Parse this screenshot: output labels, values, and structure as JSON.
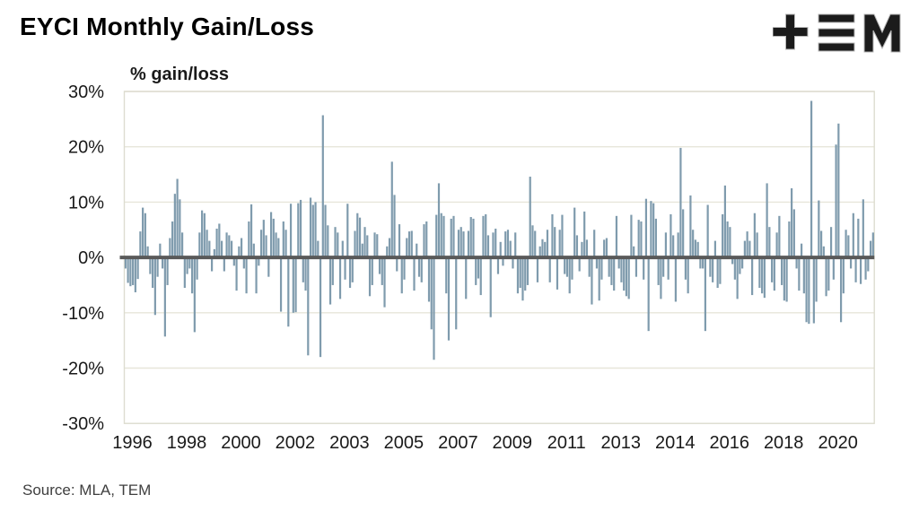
{
  "header": {
    "title": "EYCI Monthly Gain/Loss"
  },
  "logo": {
    "name": "tem-logo",
    "color": "#1b1b1b"
  },
  "source_note": "Source: MLA, TEM",
  "chart_data": {
    "type": "bar",
    "title": "% gain/loss",
    "ylabel": "% gain/loss",
    "xlabel": "",
    "ylim": [
      -30,
      30
    ],
    "grid": true,
    "legend_position": "none",
    "series_name": "EYCI monthly percent gain/loss",
    "x_start": "1996-07",
    "x_end": "2021-10",
    "x_frequency": "monthly",
    "n_points": 304,
    "y_tick_labels": [
      "30%",
      "20%",
      "10%",
      "0%",
      "-10%",
      "-20%",
      "-30%"
    ],
    "y_tick_values": [
      30,
      20,
      10,
      0,
      -10,
      -20,
      -30
    ],
    "x_ticks": [
      {
        "label": "1996",
        "month_index": 0
      },
      {
        "label": "1998",
        "month_index": 22
      },
      {
        "label": "2000",
        "month_index": 44
      },
      {
        "label": "2002",
        "month_index": 66
      },
      {
        "label": "2003",
        "month_index": 88
      },
      {
        "label": "2005",
        "month_index": 110
      },
      {
        "label": "2007",
        "month_index": 132
      },
      {
        "label": "2009",
        "month_index": 154
      },
      {
        "label": "2011",
        "month_index": 176
      },
      {
        "label": "2013",
        "month_index": 198
      },
      {
        "label": "2014",
        "month_index": 220
      },
      {
        "label": "2016",
        "month_index": 242
      },
      {
        "label": "2018",
        "month_index": 264
      },
      {
        "label": "2020",
        "month_index": 286
      }
    ],
    "values": [
      -2.0,
      -4.6,
      -5.2,
      -5.0,
      -6.3,
      -3.9,
      4.7,
      9.0,
      8.0,
      2.0,
      -3.0,
      -5.5,
      -10.4,
      -3.5,
      2.5,
      -2.0,
      -14.3,
      -5.0,
      3.5,
      6.5,
      11.5,
      14.2,
      10.5,
      4.5,
      -5.5,
      -3.0,
      -2.0,
      -6.5,
      -13.5,
      -4.0,
      4.5,
      8.5,
      8.0,
      5.0,
      3.0,
      -2.5,
      1.5,
      5.2,
      6.1,
      3.0,
      -2.5,
      4.5,
      4.0,
      3.0,
      -1.5,
      -6.0,
      2.0,
      3.5,
      -2.0,
      -6.5,
      6.5,
      9.6,
      2.5,
      -6.5,
      -1.5,
      5.0,
      6.8,
      4.0,
      -3.5,
      8.2,
      7.0,
      4.5,
      3.5,
      -9.8,
      6.5,
      5.0,
      -12.5,
      9.7,
      -10.0,
      -9.9,
      9.8,
      10.4,
      -4.5,
      -6.0,
      -17.7,
      10.8,
      9.5,
      10.0,
      3.0,
      -18.0,
      25.7,
      9.5,
      5.8,
      -8.5,
      -5.0,
      5.5,
      4.5,
      -7.5,
      3.0,
      -4.0,
      9.7,
      -5.5,
      -4.5,
      4.8,
      8.0,
      7.2,
      2.5,
      5.5,
      4.0,
      -7.0,
      -5.0,
      4.5,
      4.2,
      -3.0,
      -5.0,
      -9.0,
      2.0,
      3.5,
      17.3,
      11.3,
      -2.5,
      6.0,
      -6.5,
      -4.0,
      3.5,
      4.7,
      4.8,
      -6.0,
      2.5,
      -3.5,
      -4.5,
      6.0,
      6.5,
      -8.0,
      -13.0,
      -18.5,
      7.7,
      13.4,
      8.0,
      7.5,
      -6.5,
      -15.0,
      7.0,
      7.5,
      -13.0,
      5.0,
      5.5,
      4.7,
      -7.5,
      4.8,
      7.3,
      7.0,
      -5.0,
      -3.8,
      -6.8,
      7.5,
      7.8,
      4.0,
      -10.8,
      4.5,
      5.2,
      -3.0,
      2.8,
      -1.5,
      4.7,
      5.0,
      3.0,
      -2.0,
      4.5,
      -6.5,
      -5.5,
      -7.8,
      -6.0,
      -5.0,
      14.6,
      5.8,
      4.8,
      -4.5,
      2.0,
      3.3,
      2.8,
      5.0,
      -4.5,
      7.8,
      5.5,
      -5.8,
      5.0,
      7.7,
      -3.0,
      -3.5,
      -6.5,
      -4.0,
      9.0,
      4.0,
      -2.5,
      2.8,
      8.3,
      3.2,
      -3.5,
      -8.5,
      5.0,
      -2.0,
      -7.8,
      -4.0,
      3.2,
      3.5,
      -3.5,
      -5.0,
      -6.0,
      7.5,
      -2.0,
      -4.5,
      -6.0,
      -7.0,
      -7.5,
      7.7,
      2.0,
      -3.5,
      6.8,
      6.5,
      -4.0,
      10.6,
      -13.3,
      10.2,
      9.8,
      7.0,
      -5.0,
      -7.5,
      -3.5,
      4.5,
      -4.0,
      7.8,
      4.0,
      -8.0,
      4.5,
      19.8,
      8.7,
      -4.0,
      -6.5,
      11.2,
      5.0,
      3.2,
      2.8,
      -2.0,
      -2.0,
      -13.3,
      9.5,
      -3.5,
      -4.5,
      3.0,
      -5.5,
      -4.8,
      7.8,
      13.0,
      6.5,
      5.5,
      -1.2,
      -4.0,
      -7.5,
      -3.0,
      -2.0,
      3.0,
      4.7,
      3.0,
      -6.8,
      8.0,
      4.5,
      -5.5,
      -6.5,
      -7.3,
      13.4,
      5.5,
      -4.5,
      -6.0,
      4.5,
      7.5,
      -5.0,
      -7.8,
      -8.0,
      6.5,
      12.5,
      8.7,
      -2.0,
      -6.0,
      2.5,
      -6.5,
      -11.7,
      -12.0,
      28.3,
      -11.9,
      -8.0,
      10.3,
      4.8,
      2.0,
      -7.0,
      -6.0,
      5.5,
      -4.0,
      20.4,
      24.2,
      -11.7,
      -6.5,
      5.0,
      4.0,
      -2.0,
      8.0,
      -4.5,
      7.0,
      -4.8,
      10.5,
      -4.0,
      -2.5,
      3.0,
      4.5
    ],
    "colors": {
      "bar": "#7f9bad",
      "zero_line": "#595959",
      "gridline": "#e7e6da",
      "plot_border": "#dddcd0",
      "tick_text": "#1a1a1a"
    }
  }
}
